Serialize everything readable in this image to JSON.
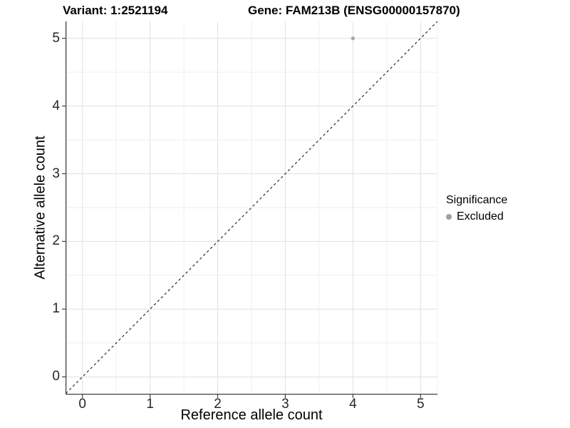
{
  "chart_data": {
    "type": "scatter",
    "titles": [
      "Variant: 1:2521194",
      "Gene: FAM213B (ENSG00000157870)"
    ],
    "xlabel": "Reference allele count",
    "ylabel": "Alternative allele count",
    "xlim": [
      -0.25,
      5.25
    ],
    "ylim": [
      -0.25,
      5.25
    ],
    "x_ticks": [
      0,
      1,
      2,
      3,
      4,
      5
    ],
    "y_ticks": [
      0,
      1,
      2,
      3,
      4,
      5
    ],
    "x_minor_ticks": [
      0.5,
      1.5,
      2.5,
      3.5,
      4.5
    ],
    "y_minor_ticks": [
      0.5,
      1.5,
      2.5,
      3.5,
      4.5
    ],
    "grid": "major and minor gridlines on white background",
    "series": [
      {
        "name": "Excluded",
        "marker": "circle",
        "color": "#a8a8a8",
        "points": [
          {
            "x": 4,
            "y": 5
          }
        ]
      }
    ],
    "reference_line": {
      "style": "dashed",
      "slope": 1,
      "intercept": 0,
      "color": "#1a1a1a"
    },
    "legend": {
      "title": "Significance",
      "position": "right",
      "entries": [
        {
          "label": "Excluded",
          "color": "#a0a0a0",
          "marker": "circle"
        }
      ]
    }
  },
  "colors": {
    "background": "#ffffff",
    "grid_major": "#e3e3e3",
    "grid_minor": "#eeeeee",
    "panel_edge_right": "#f0f0f0",
    "axis_line": "#404040",
    "tick_mark": "#404040",
    "tick_label": "#262626",
    "text": "#000000"
  }
}
